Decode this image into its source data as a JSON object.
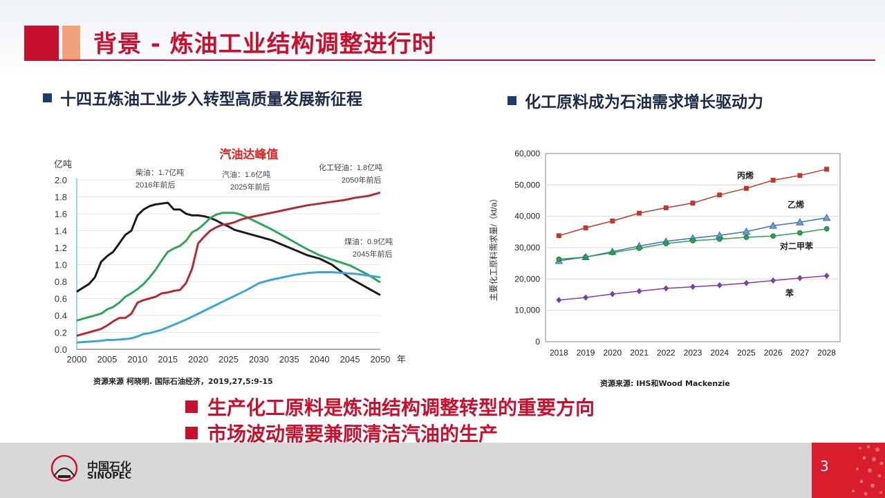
{
  "header": {
    "title": "背景 - 炼油工业结构调整进行时"
  },
  "left_section": {
    "title": "十四五炼油工业步入转型高质量发展新征程",
    "source": "资源来源 柯晓明. 国际石油经济，2019,27,5:9-15"
  },
  "right_section": {
    "title": "化工原料成为石油需求增长驱动力",
    "source": "资源来源: IHS和Wood Mackenzie"
  },
  "bullets": [
    "生产化工原料是炼油结构调整转型的重要方向",
    "市场波动需要兼顾清洁汽油的生产"
  ],
  "footer": {
    "page_number": "3",
    "logo_cn": "中国石化",
    "logo_en": "SINOPEC"
  },
  "colors": {
    "accent_red": "#c8102e",
    "navy": "#1d2a4a"
  },
  "chart_data": [
    {
      "type": "line",
      "title": "汽油达峰值",
      "ylabel": "亿吨",
      "xlabel": "年",
      "xlim": [
        2000,
        2050
      ],
      "ylim": [
        0,
        2.0
      ],
      "x_ticks": [
        "2000",
        "2005",
        "2010",
        "2015",
        "2020",
        "2025",
        "2030",
        "2035",
        "2040",
        "2045",
        "2050"
      ],
      "y_ticks": [
        "0.0",
        "0.2",
        "0.4",
        "0.6",
        "0.8",
        "1.0",
        "1.2",
        "1.4",
        "1.6",
        "1.8",
        "2.0"
      ],
      "annotations": {
        "diesel": [
          "柴油：1.7亿吨",
          "2016年前后"
        ],
        "gasoline": [
          "汽油：1.6亿吨",
          "2025年前后"
        ],
        "chemical": [
          "化工轻油：1.8亿吨",
          "2050年前后"
        ],
        "kerosene": [
          "煤油：0.9亿吨",
          "2045年前后"
        ]
      },
      "series": [
        {
          "color": "#1a1a1a",
          "x": [
            2000,
            2002,
            2003,
            2004,
            2005,
            2006,
            2007,
            2008,
            2009,
            2010,
            2011,
            2012,
            2013,
            2014,
            2015,
            2016,
            2017,
            2018,
            2019,
            2020,
            2021,
            2022,
            2023,
            2024,
            2025,
            2026,
            2028,
            2030,
            2032,
            2035,
            2038,
            2040,
            2042,
            2045,
            2048,
            2050
          ],
          "values": [
            0.68,
            0.77,
            0.85,
            1.03,
            1.1,
            1.15,
            1.25,
            1.35,
            1.4,
            1.58,
            1.65,
            1.69,
            1.71,
            1.72,
            1.73,
            1.65,
            1.65,
            1.6,
            1.58,
            1.58,
            1.57,
            1.55,
            1.52,
            1.48,
            1.45,
            1.41,
            1.37,
            1.33,
            1.29,
            1.2,
            1.11,
            1.07,
            1.0,
            0.84,
            0.72,
            0.64
          ]
        },
        {
          "color": "#2fa55a",
          "x": [
            2000,
            2002,
            2004,
            2005,
            2006,
            2007,
            2008,
            2009,
            2010,
            2011,
            2012,
            2013,
            2014,
            2015,
            2016,
            2017,
            2018,
            2019,
            2020,
            2021,
            2022,
            2023,
            2024,
            2025,
            2026,
            2027,
            2028,
            2030,
            2032,
            2035,
            2038,
            2040,
            2042,
            2045,
            2048,
            2050
          ],
          "values": [
            0.34,
            0.38,
            0.42,
            0.47,
            0.5,
            0.55,
            0.62,
            0.66,
            0.71,
            0.77,
            0.85,
            0.94,
            1.05,
            1.15,
            1.19,
            1.22,
            1.28,
            1.38,
            1.42,
            1.48,
            1.55,
            1.59,
            1.61,
            1.61,
            1.61,
            1.59,
            1.56,
            1.49,
            1.42,
            1.3,
            1.18,
            1.11,
            1.06,
            0.99,
            0.88,
            0.79
          ]
        },
        {
          "color": "#b22a36",
          "x": [
            2000,
            2002,
            2004,
            2005,
            2006,
            2007,
            2008,
            2009,
            2010,
            2011,
            2012,
            2013,
            2014,
            2015,
            2016,
            2017,
            2018,
            2019,
            2020,
            2021,
            2022,
            2023,
            2024,
            2025,
            2026,
            2027,
            2028,
            2030,
            2032,
            2034,
            2036,
            2038,
            2040,
            2042,
            2044,
            2046,
            2048,
            2050
          ],
          "values": [
            0.16,
            0.2,
            0.24,
            0.28,
            0.33,
            0.37,
            0.37,
            0.42,
            0.55,
            0.58,
            0.6,
            0.62,
            0.66,
            0.67,
            0.69,
            0.7,
            0.78,
            0.95,
            1.25,
            1.33,
            1.4,
            1.44,
            1.47,
            1.48,
            1.5,
            1.53,
            1.55,
            1.58,
            1.61,
            1.64,
            1.67,
            1.7,
            1.72,
            1.74,
            1.76,
            1.79,
            1.81,
            1.85
          ]
        },
        {
          "color": "#3aa6d6",
          "x": [
            2000,
            2002,
            2004,
            2005,
            2006,
            2008,
            2009,
            2010,
            2011,
            2012,
            2013,
            2014,
            2015,
            2016,
            2018,
            2020,
            2022,
            2024,
            2026,
            2028,
            2030,
            2032,
            2034,
            2036,
            2038,
            2040,
            2042,
            2044,
            2046,
            2048,
            2050
          ],
          "values": [
            0.08,
            0.09,
            0.1,
            0.11,
            0.11,
            0.12,
            0.13,
            0.15,
            0.18,
            0.19,
            0.21,
            0.23,
            0.26,
            0.29,
            0.35,
            0.42,
            0.49,
            0.56,
            0.63,
            0.7,
            0.78,
            0.82,
            0.85,
            0.88,
            0.9,
            0.91,
            0.91,
            0.9,
            0.89,
            0.87,
            0.85
          ]
        }
      ]
    },
    {
      "type": "line",
      "ylabel": "主要化工原料需求量/（kt/a）",
      "categories": [
        "2018",
        "2019",
        "2020",
        "2021",
        "2022",
        "2023",
        "2024",
        "2025",
        "2026",
        "2027",
        "2028"
      ],
      "ylim": [
        0,
        60000
      ],
      "y_ticks": [
        "0",
        "10,000",
        "20,000",
        "30,000",
        "40,000",
        "50,000",
        "60,000"
      ],
      "series": [
        {
          "name": "丙烯",
          "color": "#c0392b",
          "marker": "square",
          "values": [
            33800,
            36300,
            38500,
            41000,
            42700,
            44200,
            46800,
            48900,
            51500,
            53000,
            55000
          ]
        },
        {
          "name": "乙烯",
          "color": "#3b6fb6",
          "marker": "triangle",
          "values": [
            25800,
            27000,
            28700,
            30500,
            32000,
            33000,
            33900,
            35100,
            37000,
            38100,
            39500
          ]
        },
        {
          "name": "对二甲苯",
          "color": "#2e9e4f",
          "marker": "circle",
          "values": [
            26300,
            27000,
            28400,
            29800,
            31300,
            32200,
            32700,
            33300,
            33700,
            34700,
            36000
          ]
        },
        {
          "name": "苯",
          "color": "#7b3fa0",
          "marker": "diamond",
          "values": [
            13300,
            14100,
            15200,
            16100,
            17000,
            17500,
            18000,
            18700,
            19500,
            20300,
            21000
          ]
        }
      ]
    }
  ]
}
